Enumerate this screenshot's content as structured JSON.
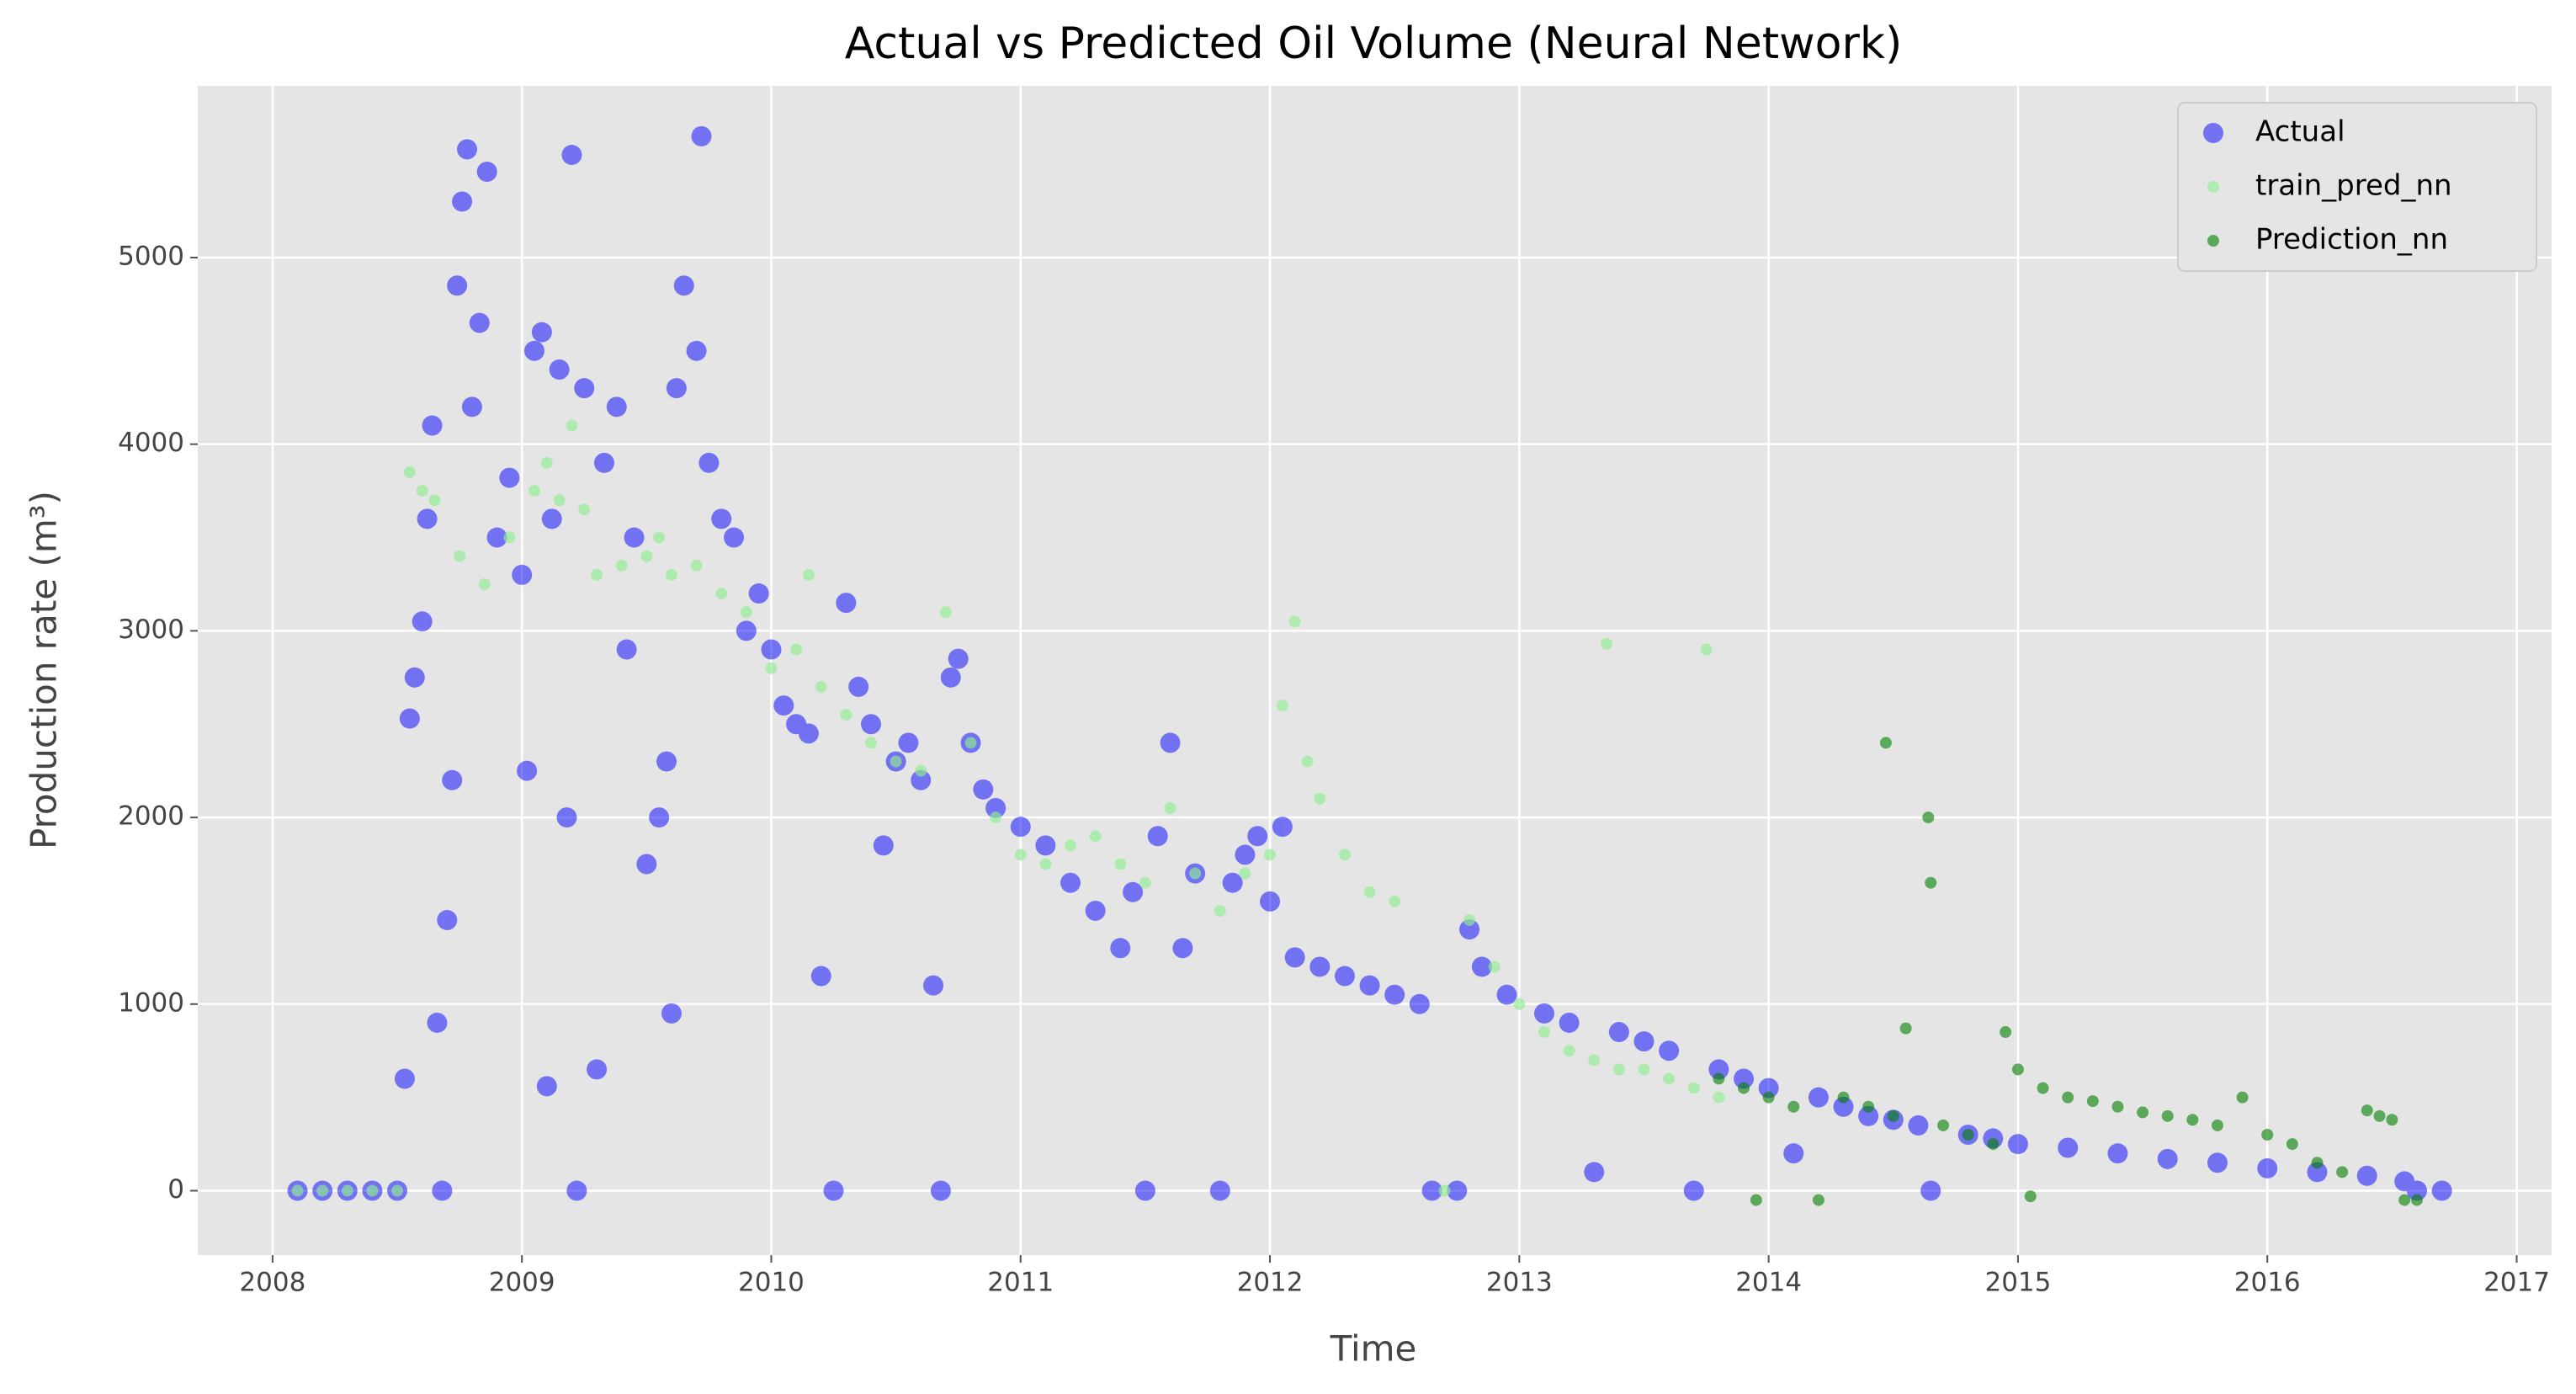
{
  "chart_data": {
    "type": "scatter",
    "title": "Actual vs Predicted Oil Volume (Neural Network)",
    "x_label": "Time",
    "y_label": "Production rate (m³)",
    "xlim": [
      2007.7,
      2017.14
    ],
    "ylim": [
      -345,
      5920
    ],
    "xticks": [
      2008,
      2009,
      2010,
      2011,
      2012,
      2013,
      2014,
      2015,
      2016,
      2017
    ],
    "yticks": [
      0,
      1000,
      2000,
      3000,
      4000,
      5000
    ],
    "grid": true,
    "legend": "upper right",
    "series": [
      {
        "name": "Actual",
        "color": "#0000ff",
        "opacity": 0.5,
        "marker_size": 12,
        "x": [
          2008.1,
          2008.2,
          2008.3,
          2008.4,
          2008.5,
          2008.53,
          2008.55,
          2008.57,
          2008.6,
          2008.62,
          2008.64,
          2008.66,
          2008.68,
          2008.7,
          2008.72,
          2008.74,
          2008.76,
          2008.78,
          2008.8,
          2008.83,
          2008.86,
          2008.9,
          2008.95,
          2009.0,
          2009.02,
          2009.05,
          2009.08,
          2009.1,
          2009.12,
          2009.15,
          2009.18,
          2009.2,
          2009.22,
          2009.25,
          2009.3,
          2009.33,
          2009.38,
          2009.42,
          2009.45,
          2009.5,
          2009.55,
          2009.58,
          2009.6,
          2009.62,
          2009.65,
          2009.7,
          2009.72,
          2009.75,
          2009.8,
          2009.85,
          2009.9,
          2009.95,
          2010.0,
          2010.05,
          2010.1,
          2010.15,
          2010.2,
          2010.25,
          2010.3,
          2010.35,
          2010.4,
          2010.45,
          2010.5,
          2010.55,
          2010.6,
          2010.65,
          2010.68,
          2010.72,
          2010.75,
          2010.8,
          2010.85,
          2010.9,
          2011.0,
          2011.1,
          2011.2,
          2011.3,
          2011.4,
          2011.45,
          2011.5,
          2011.55,
          2011.6,
          2011.65,
          2011.7,
          2011.8,
          2011.85,
          2011.9,
          2011.95,
          2012.0,
          2012.05,
          2012.1,
          2012.2,
          2012.3,
          2012.4,
          2012.5,
          2012.6,
          2012.65,
          2012.75,
          2012.8,
          2012.85,
          2012.95,
          2013.1,
          2013.2,
          2013.3,
          2013.4,
          2013.5,
          2013.6,
          2013.7,
          2013.8,
          2013.9,
          2014.0,
          2014.1,
          2014.2,
          2014.3,
          2014.4,
          2014.5,
          2014.6,
          2014.65,
          2014.8,
          2014.9,
          2015.0,
          2015.2,
          2015.4,
          2015.6,
          2015.8,
          2016.0,
          2016.2,
          2016.4,
          2016.55,
          2016.6,
          2016.7
        ],
        "values": [
          0,
          0,
          0,
          0,
          0,
          600,
          2530,
          2750,
          3050,
          3600,
          4100,
          900,
          0,
          1450,
          2200,
          4850,
          5300,
          5580,
          4200,
          4650,
          5460,
          3500,
          3820,
          3300,
          2250,
          4500,
          4600,
          560,
          3600,
          4400,
          2000,
          5550,
          0,
          4300,
          650,
          3900,
          4200,
          2900,
          3500,
          1750,
          2000,
          2300,
          950,
          4300,
          4850,
          4500,
          5650,
          3900,
          3600,
          3500,
          3000,
          3200,
          2900,
          2600,
          2500,
          2450,
          1150,
          0,
          3150,
          2700,
          2500,
          1850,
          2300,
          2400,
          2200,
          1100,
          0,
          2750,
          2850,
          2400,
          2150,
          2050,
          1950,
          1850,
          1650,
          1500,
          1300,
          1600,
          0,
          1900,
          2400,
          1300,
          1700,
          0,
          1650,
          1800,
          1900,
          1550,
          1950,
          1250,
          1200,
          1150,
          1100,
          1050,
          1000,
          0,
          0,
          1400,
          1200,
          1050,
          950,
          900,
          100,
          850,
          800,
          750,
          0,
          650,
          600,
          550,
          200,
          500,
          450,
          400,
          380,
          350,
          0,
          300,
          280,
          250,
          230,
          200,
          170,
          150,
          120,
          100,
          80,
          50,
          0,
          0
        ]
      },
      {
        "name": "train_pred_nn",
        "color": "#90ee90",
        "opacity": 0.65,
        "marker_size": 7,
        "x": [
          2008.1,
          2008.2,
          2008.3,
          2008.4,
          2008.5,
          2008.55,
          2008.6,
          2008.65,
          2008.75,
          2008.85,
          2008.95,
          2009.05,
          2009.1,
          2009.15,
          2009.2,
          2009.25,
          2009.3,
          2009.4,
          2009.5,
          2009.55,
          2009.6,
          2009.7,
          2009.8,
          2009.9,
          2010.0,
          2010.1,
          2010.15,
          2010.2,
          2010.3,
          2010.4,
          2010.5,
          2010.6,
          2010.7,
          2010.8,
          2010.9,
          2011.0,
          2011.1,
          2011.2,
          2011.3,
          2011.4,
          2011.5,
          2011.6,
          2011.7,
          2011.8,
          2011.9,
          2012.0,
          2012.05,
          2012.1,
          2012.15,
          2012.2,
          2012.3,
          2012.4,
          2012.5,
          2012.7,
          2012.8,
          2012.9,
          2013.0,
          2013.1,
          2013.2,
          2013.3,
          2013.35,
          2013.4,
          2013.5,
          2013.6,
          2013.7,
          2013.75,
          2013.8
        ],
        "values": [
          0,
          0,
          0,
          0,
          0,
          3850,
          3750,
          3700,
          3400,
          3250,
          3500,
          3750,
          3900,
          3700,
          4100,
          3650,
          3300,
          3350,
          3400,
          3500,
          3300,
          3350,
          3200,
          3100,
          2800,
          2900,
          3300,
          2700,
          2550,
          2400,
          2300,
          2250,
          3100,
          2400,
          2000,
          1800,
          1750,
          1850,
          1900,
          1750,
          1650,
          2050,
          1700,
          1500,
          1700,
          1800,
          2600,
          3050,
          2300,
          2100,
          1800,
          1600,
          1550,
          0,
          1450,
          1200,
          1000,
          850,
          750,
          700,
          2930,
          650,
          650,
          600,
          550,
          2900,
          500
        ]
      },
      {
        "name": "Prediction_nn",
        "color": "#008000",
        "opacity": 0.6,
        "marker_size": 7,
        "x": [
          2013.8,
          2013.9,
          2013.95,
          2014.0,
          2014.1,
          2014.2,
          2014.3,
          2014.4,
          2014.47,
          2014.5,
          2014.55,
          2014.64,
          2014.65,
          2014.7,
          2014.8,
          2014.9,
          2014.95,
          2015.0,
          2015.05,
          2015.1,
          2015.2,
          2015.3,
          2015.4,
          2015.5,
          2015.6,
          2015.7,
          2015.8,
          2015.9,
          2016.0,
          2016.1,
          2016.2,
          2016.3,
          2016.4,
          2016.45,
          2016.5,
          2016.55,
          2016.6
        ],
        "values": [
          600,
          550,
          -50,
          500,
          450,
          -50,
          500,
          450,
          2400,
          400,
          870,
          2000,
          1650,
          350,
          300,
          250,
          850,
          650,
          -30,
          550,
          500,
          480,
          450,
          420,
          400,
          380,
          350,
          500,
          300,
          250,
          150,
          100,
          430,
          400,
          380,
          -50,
          -50
        ]
      }
    ]
  }
}
